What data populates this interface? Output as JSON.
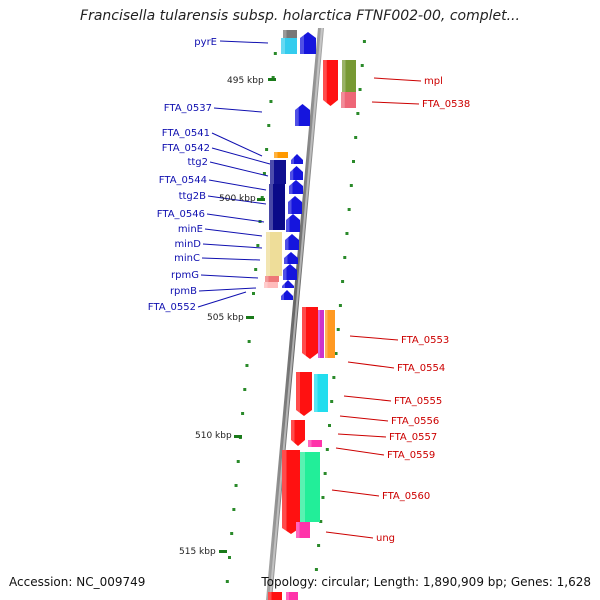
{
  "title": "Francisella tularensis subsp. holarctica FTNF002-00, complet...",
  "accession": "Accession: NC_009749",
  "topology": "Topology: circular; Length: 1,890,909 bp; Genes: 1,628",
  "colors": {
    "left_label": "#1010b0",
    "right_label": "#cc0000",
    "tick": "#1a7a1a",
    "backbone": "#888888",
    "dot": "#2a8a2a"
  },
  "kbp_ticks": [
    {
      "label": "495 kbp"
    },
    {
      "label": "500 kbp"
    },
    {
      "label": "505 kbp"
    },
    {
      "label": "510 kbp"
    },
    {
      "label": "515 kbp"
    }
  ],
  "left_labels": [
    "pyrE",
    "FTA_0537",
    "FTA_0541",
    "FTA_0542",
    "ttg2",
    "FTA_0544",
    "ttg2B",
    "FTA_0546",
    "minE",
    "minD",
    "minC",
    "rpmG",
    "rpmB",
    "FTA_0552"
  ],
  "right_labels": [
    "mpl",
    "FTA_0538",
    "FTA_0553",
    "FTA_0554",
    "FTA_0555",
    "FTA_0556",
    "FTA_0557",
    "FTA_0559",
    "FTA_0560",
    "ung"
  ]
}
